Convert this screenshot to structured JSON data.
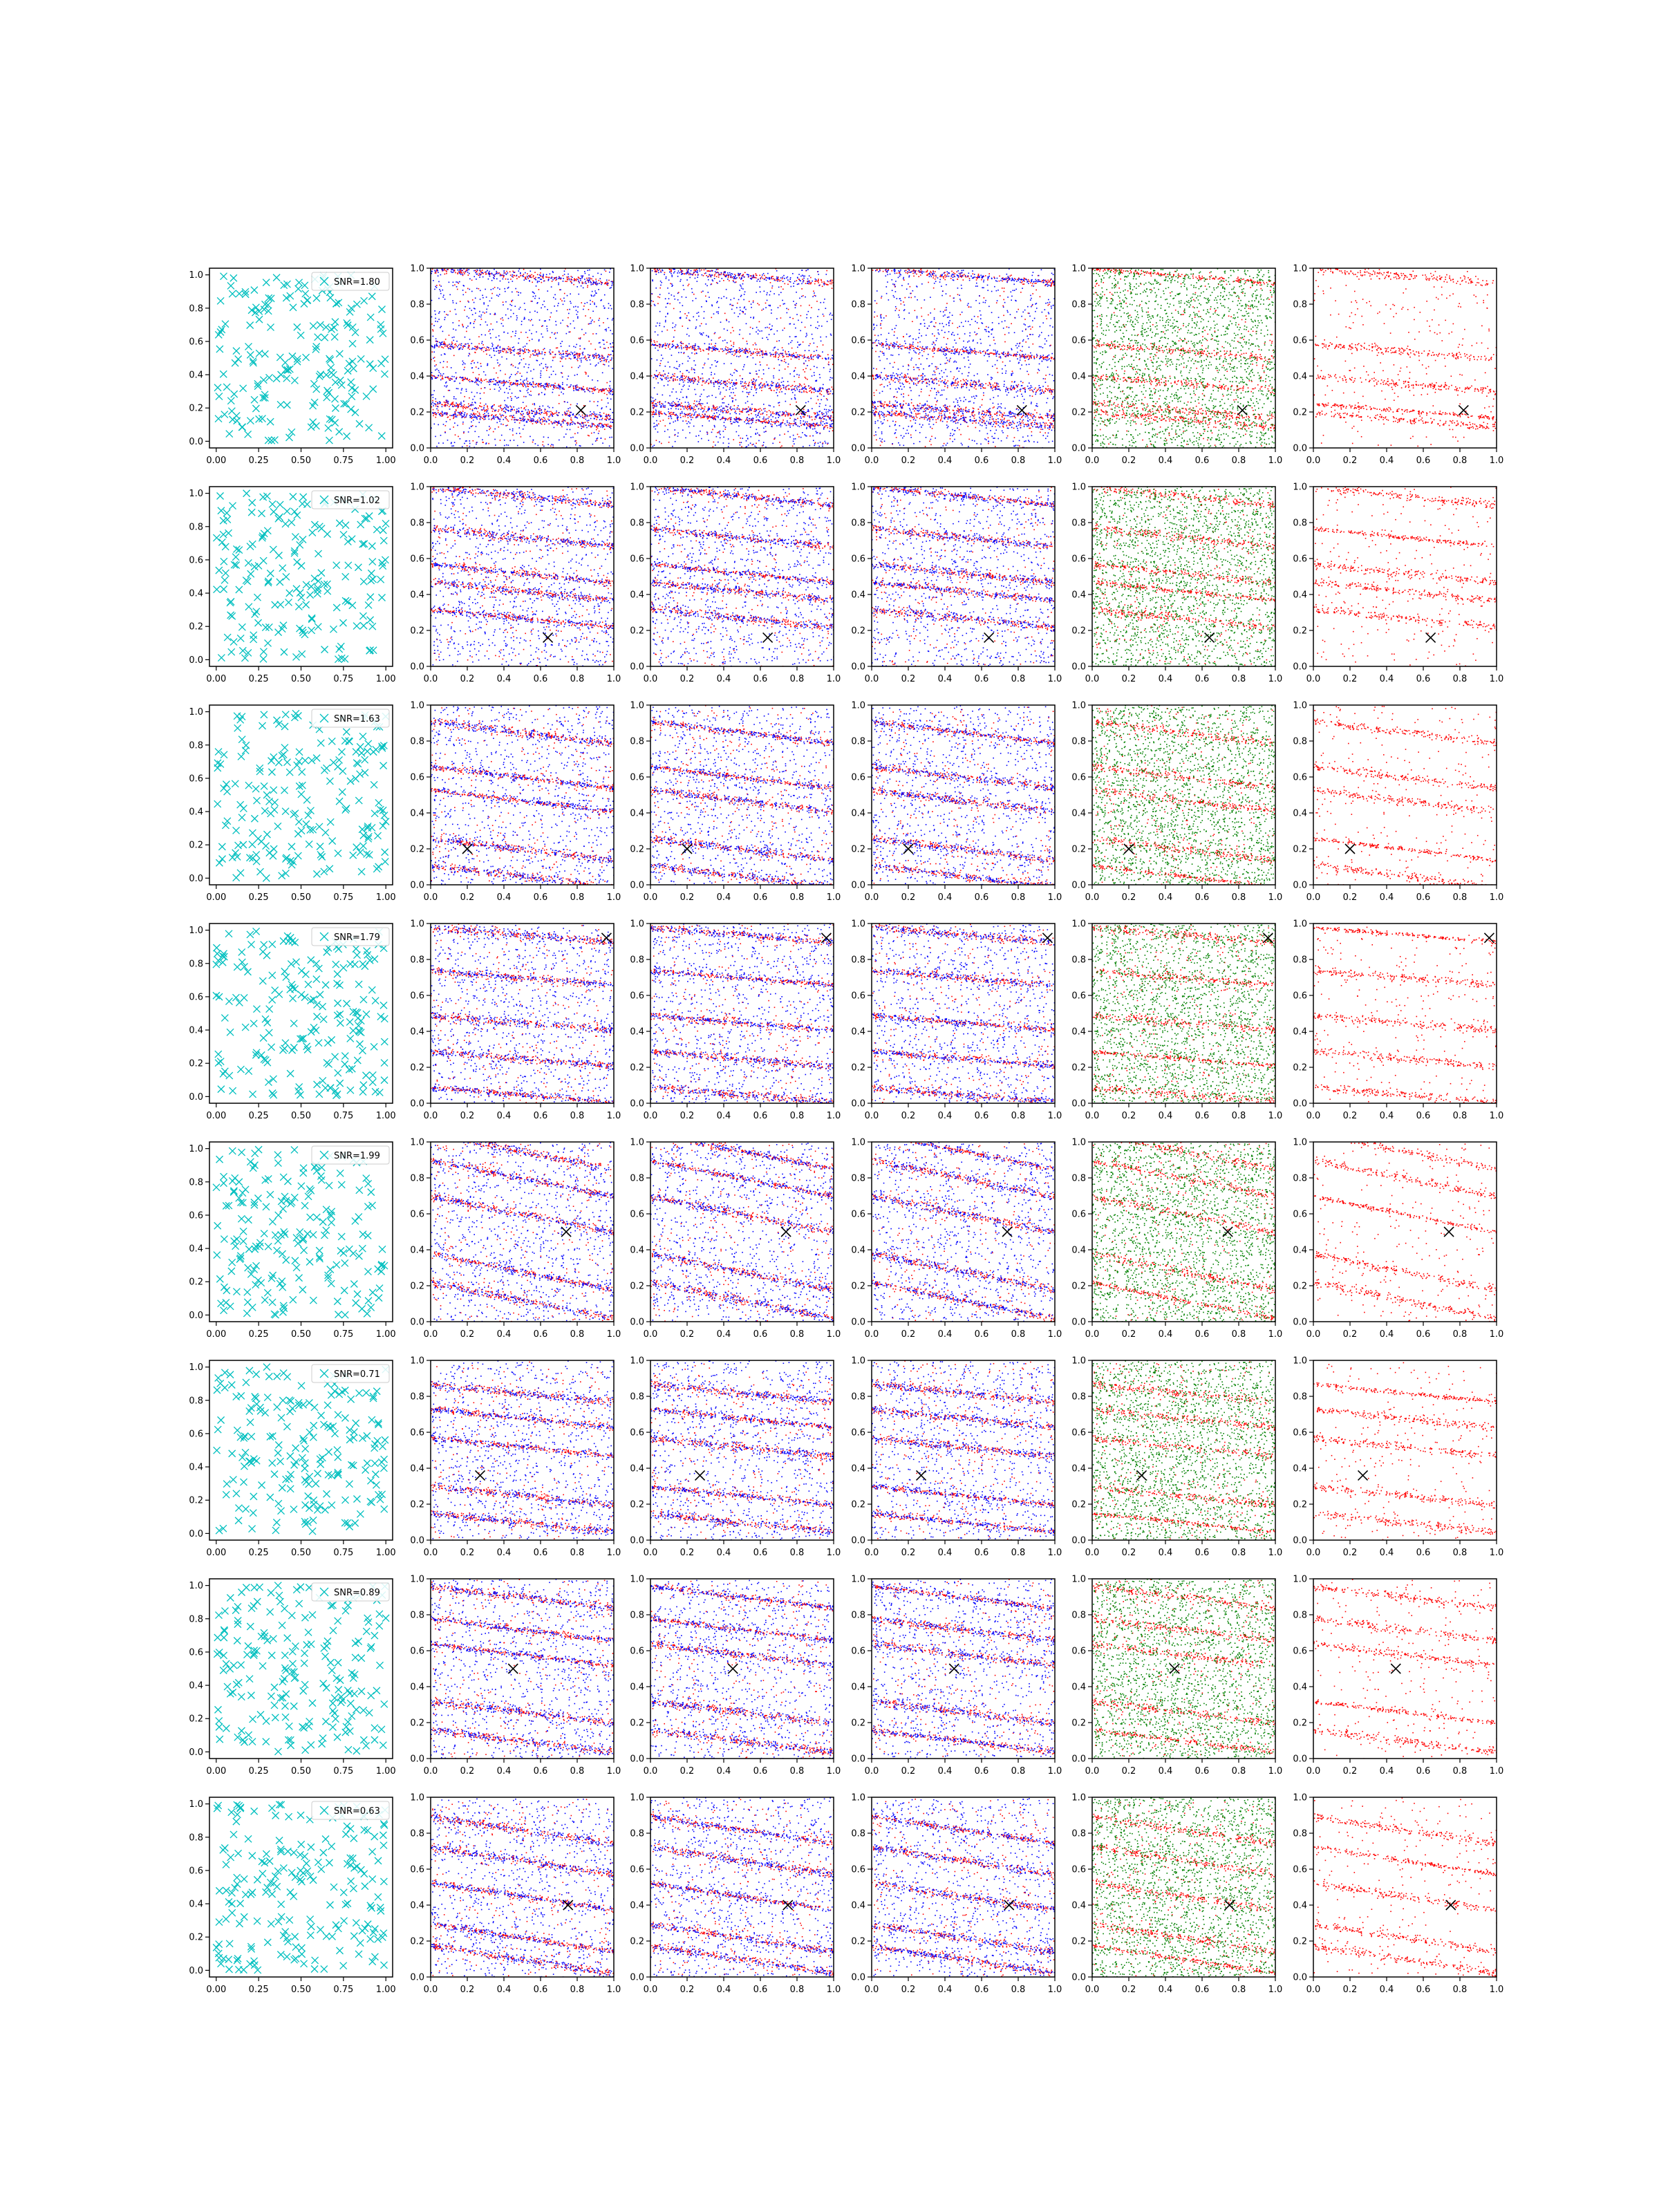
{
  "figure": {
    "rows": 8,
    "cols": 6,
    "colors": {
      "random_markers": "#00bfbf",
      "scatter_red": "#ff0000",
      "scatter_blue": "#0000ff",
      "scatter_green": "#008000",
      "target_marker": "#000000",
      "axes": "#000000"
    }
  },
  "chart_data": {
    "type": "scatter",
    "first_column": {
      "xlim": [
        -0.04,
        1.04
      ],
      "ylim": [
        -0.04,
        1.04
      ],
      "x_ticks": [
        "0.00",
        "0.25",
        "0.50",
        "0.75",
        "1.00"
      ],
      "y_ticks": [
        "0.0",
        "0.2",
        "0.4",
        "0.6",
        "0.8",
        "1.0"
      ],
      "marker": "x",
      "legend_position": "upper right",
      "points_per_panel": 200
    },
    "other_columns": {
      "xlim": [
        0,
        1
      ],
      "ylim": [
        0,
        1
      ],
      "x_ticks": [
        "0.0",
        "0.2",
        "0.4",
        "0.6",
        "0.8",
        "1.0"
      ],
      "y_ticks": [
        "0.0",
        "0.2",
        "0.4",
        "0.6",
        "0.8",
        "1.0"
      ],
      "column_colors": [
        [
          "red",
          "blue"
        ],
        [
          "red",
          "blue"
        ],
        [
          "red",
          "blue"
        ],
        [
          "red",
          "green"
        ],
        [
          "red"
        ]
      ]
    },
    "rows": [
      {
        "snr_label": "SNR=1.80",
        "target": [
          0.82,
          0.21
        ],
        "slope": -0.08,
        "bands": [
          0.21,
          0.36,
          0.16,
          0.54,
          0.96
        ]
      },
      {
        "snr_label": "SNR=1.02",
        "target": [
          0.64,
          0.16
        ],
        "slope": -0.1,
        "bands": [
          0.72,
          0.27,
          0.52,
          0.95,
          0.42
        ]
      },
      {
        "snr_label": "SNR=1.63",
        "target": [
          0.2,
          0.2
        ],
        "slope": -0.12,
        "bands": [
          0.2,
          0.47,
          0.6,
          0.85,
          0.05
        ]
      },
      {
        "snr_label": "SNR=1.79",
        "target": [
          0.96,
          0.92
        ],
        "slope": -0.08,
        "bands": [
          0.94,
          0.05,
          0.7,
          0.45,
          0.25
        ]
      },
      {
        "snr_label": "SNR=1.99",
        "target": [
          0.74,
          0.5
        ],
        "slope": -0.2,
        "bands": [
          0.6,
          0.28,
          0.8,
          0.95,
          0.12
        ]
      },
      {
        "snr_label": "SNR=0.71",
        "target": [
          0.27,
          0.36
        ],
        "slope": -0.1,
        "bands": [
          0.82,
          0.52,
          0.68,
          0.25,
          0.1
        ]
      },
      {
        "snr_label": "SNR=0.89",
        "target": [
          0.45,
          0.5
        ],
        "slope": -0.12,
        "bands": [
          0.26,
          0.58,
          0.72,
          0.9,
          0.1
        ]
      },
      {
        "snr_label": "SNR=0.63",
        "target": [
          0.75,
          0.4
        ],
        "slope": -0.15,
        "bands": [
          0.65,
          0.22,
          0.45,
          0.82,
          0.1
        ]
      }
    ]
  }
}
